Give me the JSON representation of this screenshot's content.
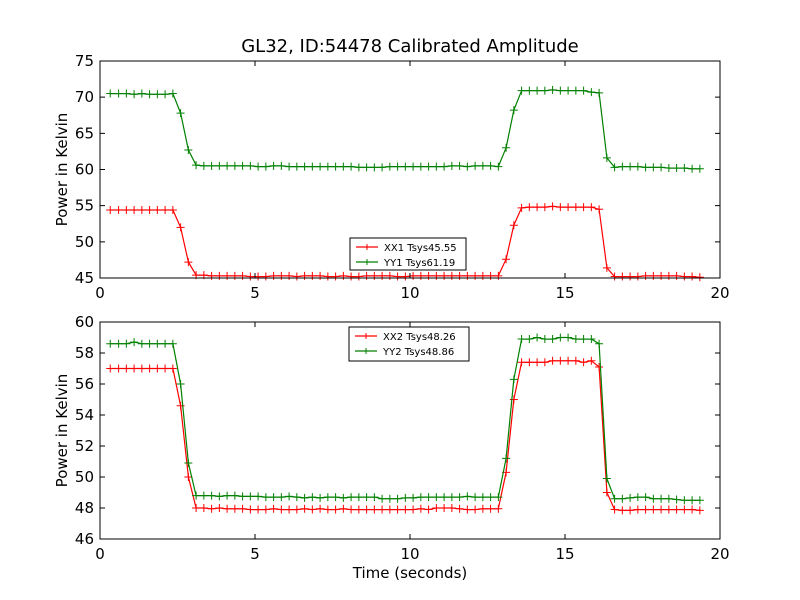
{
  "figure": {
    "title": "GL32, ID:54478 Calibrated Amplitude"
  },
  "chart_data": [
    {
      "type": "line",
      "title": "GL32, ID:54478 Calibrated Amplitude",
      "xlabel": "",
      "ylabel": "Power in Kelvin",
      "xlim": [
        0,
        20
      ],
      "ylim": [
        45,
        75
      ],
      "xticks": [
        "0",
        "5",
        "10",
        "15",
        "20"
      ],
      "yticks": [
        "45",
        "50",
        "55",
        "60",
        "65",
        "70",
        "75"
      ],
      "grid": false,
      "legend_position": "lower-center",
      "x": [
        0.33,
        0.6,
        0.85,
        1.1,
        1.35,
        1.6,
        1.85,
        2.1,
        2.35,
        2.6,
        2.85,
        3.1,
        3.35,
        3.6,
        3.85,
        4.1,
        4.35,
        4.6,
        4.85,
        5.1,
        5.35,
        5.6,
        5.85,
        6.1,
        6.35,
        6.6,
        6.85,
        7.1,
        7.35,
        7.6,
        7.85,
        8.1,
        8.35,
        8.6,
        8.85,
        9.1,
        9.35,
        9.6,
        9.85,
        10.1,
        10.35,
        10.6,
        10.85,
        11.1,
        11.35,
        11.6,
        11.85,
        12.1,
        12.35,
        12.6,
        12.85,
        13.1,
        13.35,
        13.6,
        13.85,
        14.1,
        14.35,
        14.6,
        14.85,
        15.1,
        15.35,
        15.6,
        15.85,
        16.1,
        16.35,
        16.6,
        16.85,
        17.1,
        17.35,
        17.6,
        17.85,
        18.1,
        18.35,
        18.6,
        18.85,
        19.1,
        19.35
      ],
      "series": [
        {
          "name": "XX1 Tsys45.55",
          "color": "#ff0000",
          "values": [
            54.4,
            54.4,
            54.4,
            54.4,
            54.4,
            54.4,
            54.4,
            54.4,
            54.4,
            52.0,
            47.2,
            45.4,
            45.4,
            45.3,
            45.3,
            45.3,
            45.3,
            45.3,
            45.2,
            45.2,
            45.2,
            45.3,
            45.3,
            45.3,
            45.2,
            45.3,
            45.3,
            45.3,
            45.2,
            45.2,
            45.3,
            45.2,
            45.2,
            45.3,
            45.3,
            45.3,
            45.3,
            45.2,
            45.2,
            45.3,
            45.3,
            45.3,
            45.3,
            45.3,
            45.3,
            45.3,
            45.3,
            45.3,
            45.3,
            45.3,
            45.3,
            47.6,
            52.3,
            54.7,
            54.8,
            54.8,
            54.8,
            54.9,
            54.8,
            54.8,
            54.8,
            54.8,
            54.8,
            54.5,
            46.4,
            45.2,
            45.2,
            45.2,
            45.2,
            45.3,
            45.3,
            45.3,
            45.3,
            45.3,
            45.2,
            45.2,
            45.1
          ]
        },
        {
          "name": "YY1 Tsys61.19",
          "color": "#008000",
          "values": [
            70.5,
            70.5,
            70.5,
            70.4,
            70.5,
            70.4,
            70.4,
            70.4,
            70.5,
            67.8,
            62.7,
            60.6,
            60.5,
            60.5,
            60.5,
            60.5,
            60.5,
            60.5,
            60.5,
            60.4,
            60.4,
            60.5,
            60.5,
            60.4,
            60.4,
            60.4,
            60.4,
            60.4,
            60.4,
            60.4,
            60.4,
            60.4,
            60.3,
            60.3,
            60.3,
            60.3,
            60.4,
            60.4,
            60.4,
            60.4,
            60.4,
            60.4,
            60.4,
            60.4,
            60.5,
            60.5,
            60.4,
            60.5,
            60.5,
            60.5,
            60.4,
            63.0,
            68.2,
            70.9,
            70.9,
            70.9,
            70.9,
            71.0,
            70.9,
            70.9,
            70.9,
            70.9,
            70.7,
            70.6,
            61.6,
            60.3,
            60.4,
            60.4,
            60.4,
            60.3,
            60.3,
            60.3,
            60.2,
            60.2,
            60.2,
            60.1,
            60.1
          ]
        }
      ]
    },
    {
      "type": "line",
      "title": "",
      "xlabel": "Time (seconds)",
      "ylabel": "Power in Kelvin",
      "xlim": [
        0,
        20
      ],
      "ylim": [
        46,
        60
      ],
      "xticks": [
        "0",
        "5",
        "10",
        "15",
        "20"
      ],
      "yticks": [
        "46",
        "48",
        "50",
        "52",
        "54",
        "56",
        "58",
        "60"
      ],
      "grid": false,
      "legend_position": "upper-center",
      "x": [
        0.33,
        0.6,
        0.85,
        1.1,
        1.35,
        1.6,
        1.85,
        2.1,
        2.35,
        2.6,
        2.85,
        3.1,
        3.35,
        3.6,
        3.85,
        4.1,
        4.35,
        4.6,
        4.85,
        5.1,
        5.35,
        5.6,
        5.85,
        6.1,
        6.35,
        6.6,
        6.85,
        7.1,
        7.35,
        7.6,
        7.85,
        8.1,
        8.35,
        8.6,
        8.85,
        9.1,
        9.35,
        9.6,
        9.85,
        10.1,
        10.35,
        10.6,
        10.85,
        11.1,
        11.35,
        11.6,
        11.85,
        12.1,
        12.35,
        12.6,
        12.85,
        13.1,
        13.35,
        13.6,
        13.85,
        14.1,
        14.35,
        14.6,
        14.85,
        15.1,
        15.35,
        15.6,
        15.85,
        16.1,
        16.35,
        16.6,
        16.85,
        17.1,
        17.35,
        17.6,
        17.85,
        18.1,
        18.35,
        18.6,
        18.85,
        19.1,
        19.35
      ],
      "series": [
        {
          "name": "XX2 Tsys48.26",
          "color": "#ff0000",
          "values": [
            57.0,
            57.0,
            57.0,
            57.0,
            57.0,
            57.0,
            57.0,
            57.0,
            57.0,
            54.6,
            50.0,
            48.0,
            48.0,
            47.95,
            48.0,
            47.95,
            47.95,
            47.95,
            47.9,
            47.9,
            47.9,
            47.95,
            47.9,
            47.9,
            47.9,
            47.95,
            47.9,
            47.95,
            47.9,
            47.9,
            47.95,
            47.9,
            47.9,
            47.9,
            47.9,
            47.9,
            47.9,
            47.9,
            47.9,
            47.9,
            47.95,
            47.9,
            48.0,
            48.0,
            48.0,
            47.95,
            47.9,
            47.9,
            47.95,
            47.95,
            47.95,
            50.3,
            55.0,
            57.4,
            57.4,
            57.4,
            57.4,
            57.5,
            57.5,
            57.5,
            57.5,
            57.4,
            57.5,
            57.1,
            49.0,
            47.9,
            47.85,
            47.85,
            47.9,
            47.9,
            47.9,
            47.9,
            47.9,
            47.9,
            47.9,
            47.9,
            47.85
          ]
        },
        {
          "name": "YY2 Tsys48.86",
          "color": "#008000",
          "values": [
            58.6,
            58.6,
            58.6,
            58.7,
            58.6,
            58.6,
            58.6,
            58.6,
            58.6,
            56.0,
            50.9,
            48.8,
            48.8,
            48.8,
            48.75,
            48.8,
            48.8,
            48.75,
            48.75,
            48.75,
            48.7,
            48.7,
            48.7,
            48.75,
            48.7,
            48.65,
            48.7,
            48.65,
            48.7,
            48.7,
            48.65,
            48.7,
            48.7,
            48.7,
            48.7,
            48.6,
            48.6,
            48.6,
            48.65,
            48.65,
            48.7,
            48.7,
            48.7,
            48.7,
            48.7,
            48.7,
            48.75,
            48.7,
            48.7,
            48.7,
            48.7,
            51.2,
            56.3,
            58.9,
            58.9,
            59.0,
            58.9,
            58.9,
            59.0,
            59.0,
            58.9,
            58.9,
            58.9,
            58.6,
            49.9,
            48.6,
            48.6,
            48.65,
            48.7,
            48.7,
            48.6,
            48.6,
            48.6,
            48.55,
            48.5,
            48.5,
            48.5
          ]
        }
      ]
    }
  ]
}
